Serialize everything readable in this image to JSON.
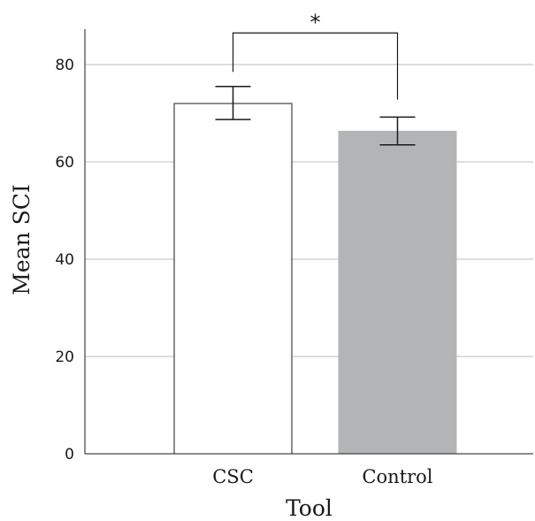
{
  "chart_data": {
    "type": "bar",
    "title": "",
    "xlabel": "Tool",
    "ylabel": "Mean SCI",
    "categories": [
      "CSC",
      "Control"
    ],
    "values": [
      72,
      66.3
    ],
    "error_low": [
      68.7,
      63.5
    ],
    "error_high": [
      75.5,
      69.2
    ],
    "ylim": [
      0,
      88
    ],
    "yticks": [
      0,
      20,
      40,
      60,
      80
    ],
    "grid": true,
    "bar_colors": [
      "#ffffff",
      "#b2b4b6"
    ],
    "bar_edge_colors": [
      "#1a1a1a",
      "#b2b4b6"
    ],
    "significance": {
      "label": "*",
      "between": [
        0,
        1
      ],
      "line_y": 86.5,
      "left_end_y": 78.5,
      "right_end_y": 72.8
    }
  }
}
